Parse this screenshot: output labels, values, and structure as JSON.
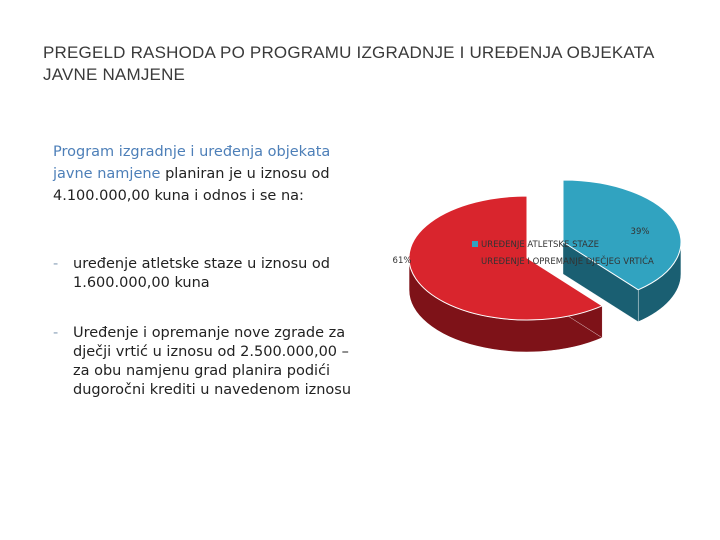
{
  "slide": {
    "title": "PREGELD RASHODA PO PROGRAMU IZGRADNJE I UREĐENJA OBJEKATA JAVNE NAMJENE"
  },
  "intro": {
    "highlight": "Program  izgradnje i uređenja objekata javne namjene",
    "rest": " planiran je u iznosu od 4.100.000,00 kuna i odnos i se na:"
  },
  "bullets": [
    {
      "marker": "-",
      "text": "uređenje atletske staze u iznosu od 1.600.000,00 kuna"
    },
    {
      "marker": "-",
      "text": "Uređenje i opremanje nove zgrade za dječji vrtić u iznosu od 2.500.000,00 – za obu namjenu grad planira podići dugoročni krediti u navedenom iznosu"
    }
  ],
  "chart_data": {
    "type": "pie",
    "style": "3d-exploded",
    "labels": [
      "UREĐENJE ATLETSKE STAZE",
      "UREĐENJE I OPREMANJE DJEČJEG VRTIĆA"
    ],
    "values": [
      39,
      61
    ],
    "data_labels": [
      "39%",
      "61%"
    ],
    "colors": [
      "#31a3c0",
      "#d9252d"
    ],
    "side_colors": [
      "#1a5f72",
      "#7e1218"
    ],
    "legend": {
      "position": "right",
      "entries": [
        "UREĐENJE ATLETSKE STAZE",
        "UREĐENJE I OPREMANJE DJEČJEG VRTIĆA"
      ]
    }
  }
}
